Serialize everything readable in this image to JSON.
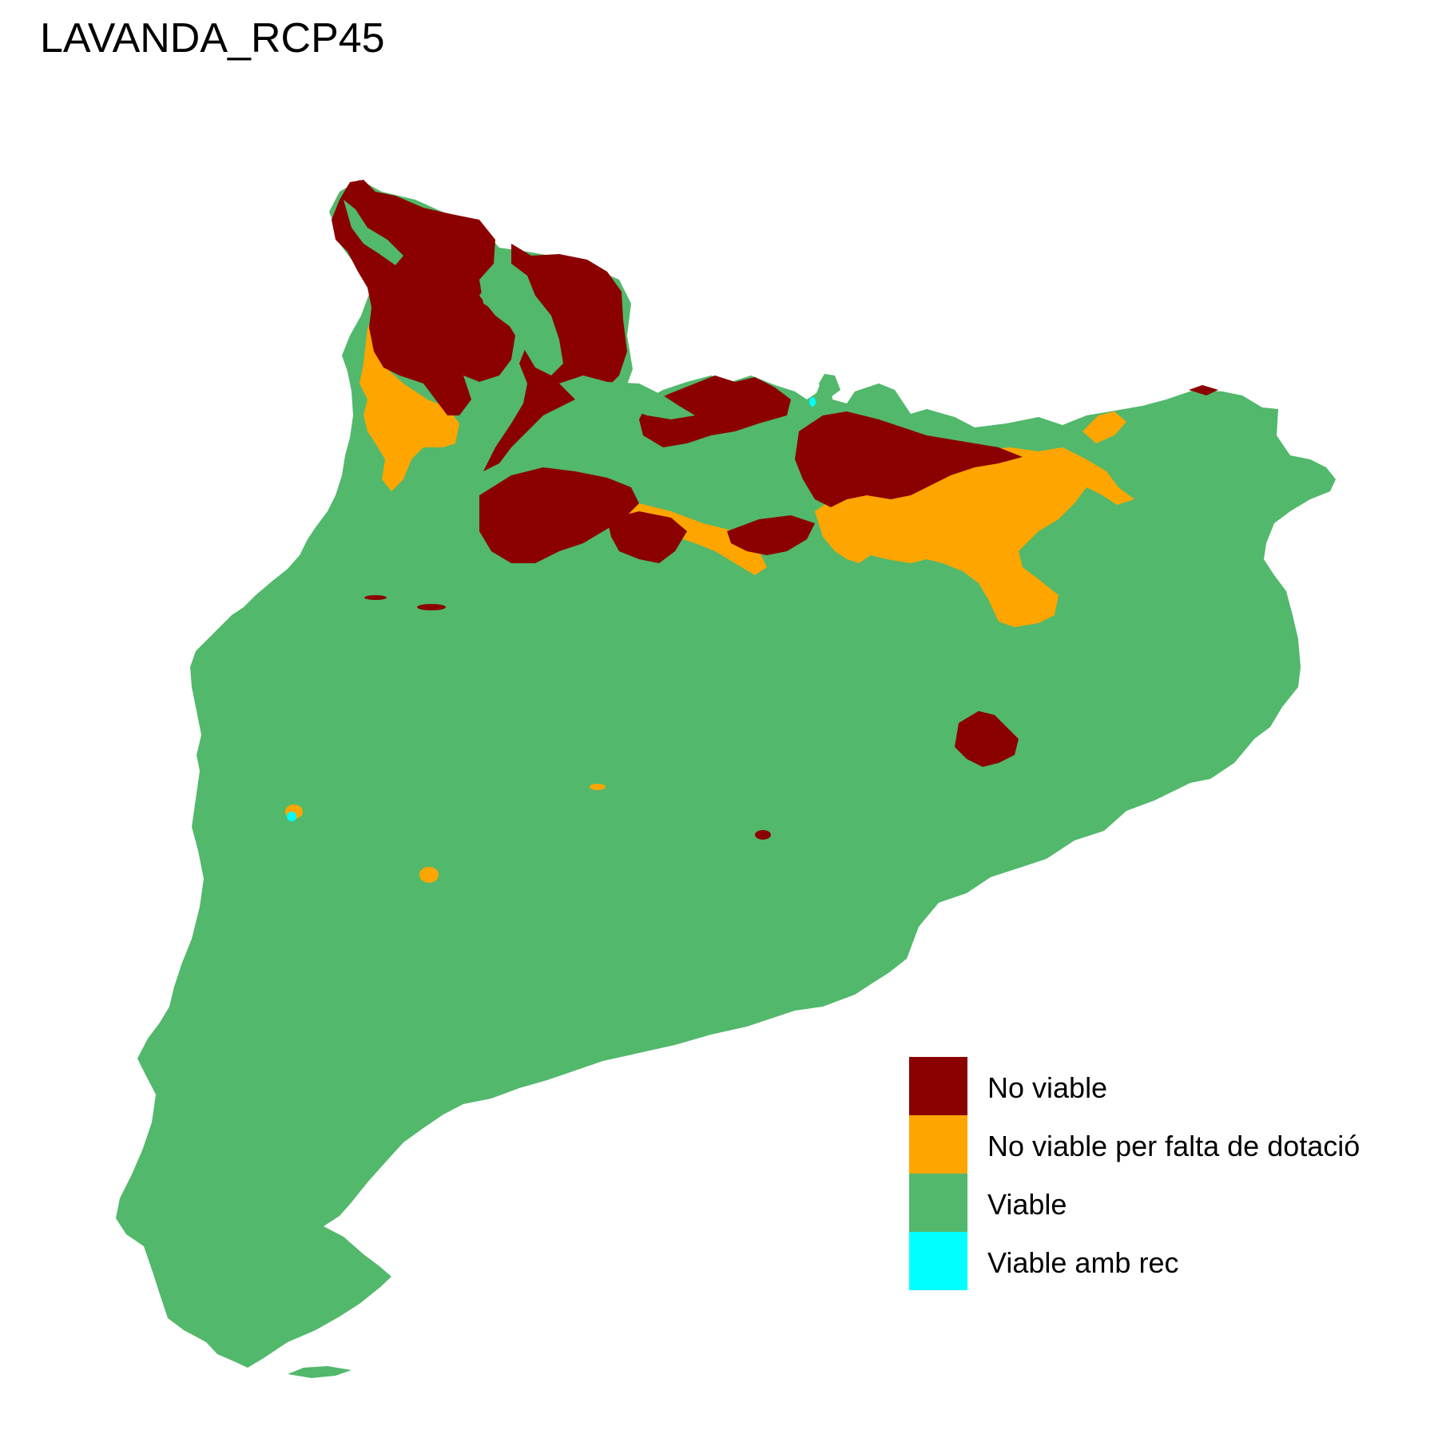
{
  "title": "LAVANDA_RCP45",
  "map": {
    "region": "Catalonia",
    "colors": {
      "no_viable": "#8B0000",
      "no_viable_dotacio": "#FFA500",
      "viable": "#52B86B",
      "viable_amb_rec": "#00FFFF"
    }
  },
  "legend": {
    "items": [
      {
        "label": "No viable",
        "color": "#8B0000"
      },
      {
        "label": "No viable per falta de dotació",
        "color": "#FFA500"
      },
      {
        "label": "Viable",
        "color": "#52B86B"
      },
      {
        "label": "Viable amb rec",
        "color": "#00FFFF"
      }
    ]
  }
}
